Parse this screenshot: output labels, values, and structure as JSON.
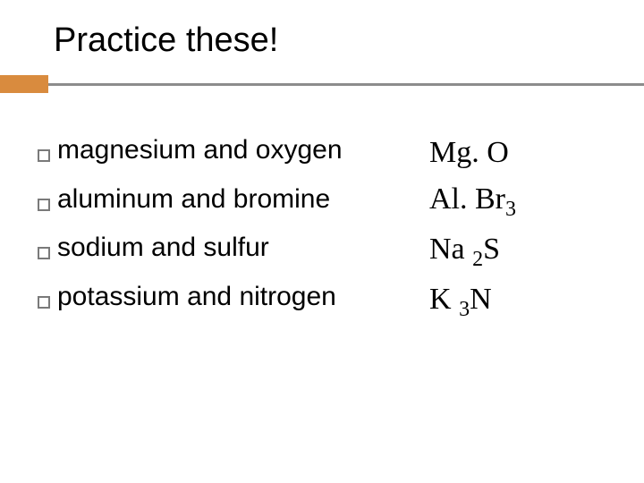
{
  "slide": {
    "title": "Practice these!",
    "accent_color": "#d98b3e",
    "underline_color": "#8c8c8c",
    "bullet_border_color": "#7a7a7a",
    "title_fontsize": 38,
    "body_fontsize": 30,
    "formula_fontsize": 34,
    "formula_font_family": "Times New Roman",
    "items": [
      {
        "text": "magnesium and oxygen"
      },
      {
        "text": "aluminum and bromine"
      },
      {
        "text": "sodium and sulfur"
      },
      {
        "text": "potassium and nitrogen"
      }
    ],
    "formulas": [
      {
        "parts": [
          {
            "t": "Mg. O",
            "sub": false
          }
        ]
      },
      {
        "parts": [
          {
            "t": "Al. Br",
            "sub": false
          },
          {
            "t": "3",
            "sub": true
          }
        ]
      },
      {
        "parts": [
          {
            "t": "Na ",
            "sub": false
          },
          {
            "t": "2",
            "sub": true
          },
          {
            "t": "S",
            "sub": false
          }
        ]
      },
      {
        "parts": [
          {
            "t": "K ",
            "sub": false
          },
          {
            "t": "3",
            "sub": true
          },
          {
            "t": "N",
            "sub": false
          }
        ]
      }
    ]
  }
}
